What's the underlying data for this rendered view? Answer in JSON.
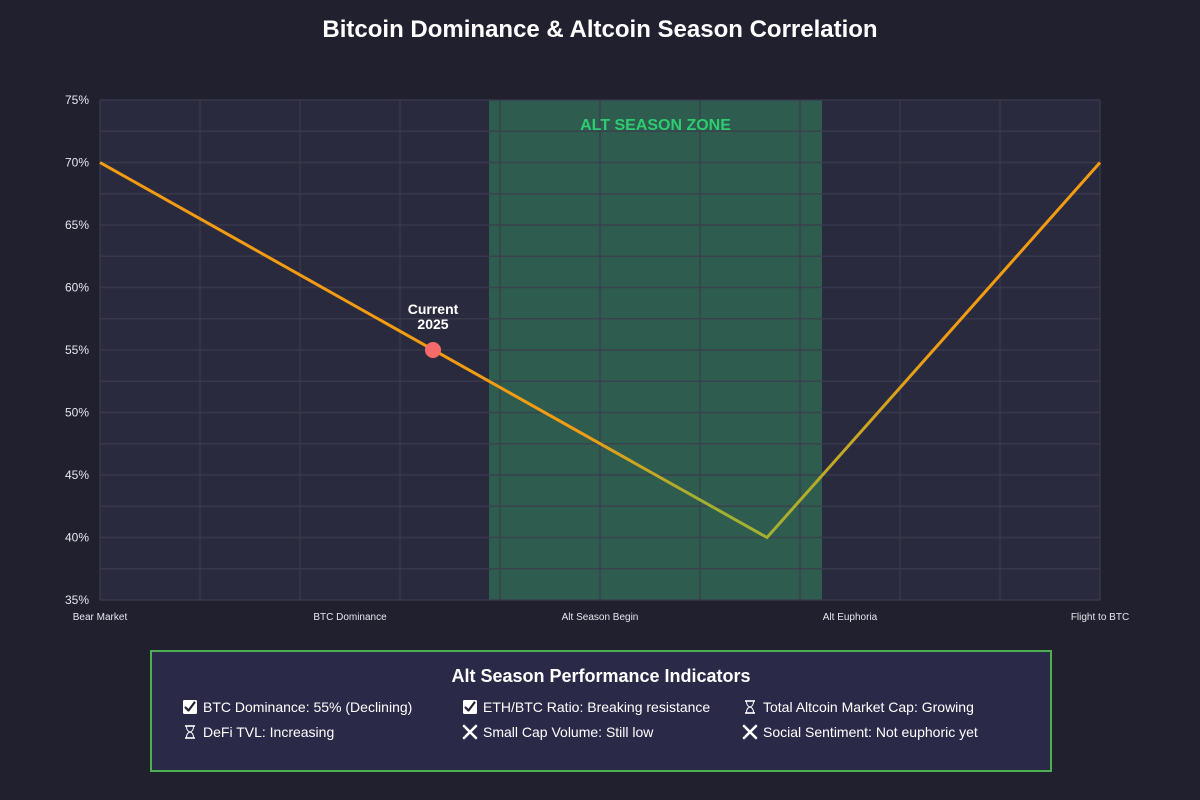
{
  "colors": {
    "background": "#21202f",
    "plot_bg": "#2a2a3e",
    "grid": "#3c3c4e",
    "zone_fill": "#2e5c4f",
    "zone_label": "#2ecc71",
    "line_start": "#f39c12",
    "line_mid": "#a3b030",
    "marker": "#f76a6a",
    "panel_border": "#4caf50",
    "panel_bg": "#2a2a48"
  },
  "chart_data": {
    "type": "line",
    "title": "Bitcoin Dominance & Altcoin Season Correlation",
    "xlabel": "",
    "ylabel": "",
    "categories": [
      "Bear Market",
      "BTC Dominance",
      "Alt Season Begin",
      "Alt Euphoria",
      "Flight to BTC"
    ],
    "y_ticks": [
      "35%",
      "40%",
      "45%",
      "50%",
      "55%",
      "60%",
      "65%",
      "70%",
      "75%"
    ],
    "ylim": [
      35,
      75
    ],
    "x_range": [
      0,
      10
    ],
    "grid": true,
    "series": [
      {
        "x": [
          0,
          6.67,
          10
        ],
        "values": [
          70,
          40,
          70
        ]
      }
    ],
    "highlight_region": {
      "x_start": 3.89,
      "x_end": 7.22,
      "label": "ALT SEASON ZONE"
    },
    "annotations": [
      {
        "x": 3.33,
        "y": 55,
        "label_lines": [
          "Current",
          "2025"
        ]
      }
    ]
  },
  "indicators": {
    "title": "Alt Season Performance Indicators",
    "items": [
      {
        "status": "check",
        "icon": "check-box-icon",
        "text": "BTC Dominance: 55% (Declining)"
      },
      {
        "status": "check",
        "icon": "check-box-icon",
        "text": "ETH/BTC Ratio: Breaking resistance"
      },
      {
        "status": "pending",
        "icon": "hourglass-icon",
        "text": "Total Altcoin Market Cap: Growing"
      },
      {
        "status": "pending",
        "icon": "hourglass-icon",
        "text": "DeFi TVL: Increasing"
      },
      {
        "status": "cross",
        "icon": "cross-icon",
        "text": "Small Cap Volume: Still low"
      },
      {
        "status": "cross",
        "icon": "cross-icon",
        "text": "Social Sentiment: Not euphoric yet"
      }
    ]
  }
}
